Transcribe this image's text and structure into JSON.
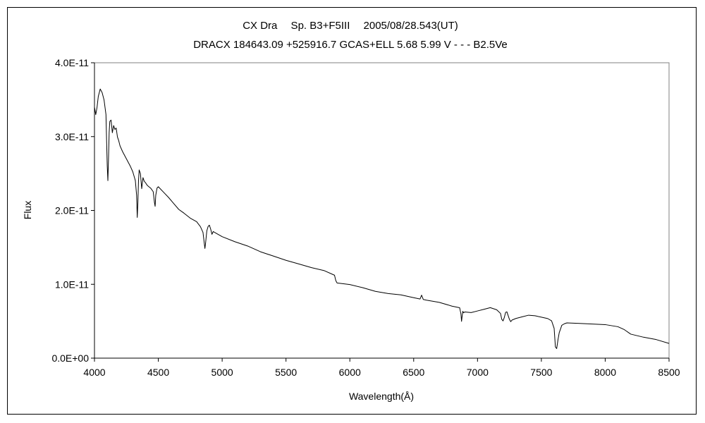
{
  "chart_data": {
    "type": "line",
    "title_line1": "CX Dra　 Sp. B3+F5III　 2005/08/28.543(UT)",
    "title_line2": "DRACX 184643.09 +525916.7 GCAS+ELL 5.68 5.99 V - - - B2.5Ve",
    "xlabel": "Wavelength(Å)",
    "ylabel": "Flux",
    "xlim": [
      4000,
      8500
    ],
    "ylim": [
      0,
      4e-11
    ],
    "x_ticks": [
      4000,
      4500,
      5000,
      5500,
      6000,
      6500,
      7000,
      7500,
      8000,
      8500
    ],
    "x_tick_labels": [
      "4000",
      "4500",
      "5000",
      "5500",
      "6000",
      "6500",
      "7000",
      "7500",
      "8000",
      "8500"
    ],
    "y_ticks": [
      0,
      1e-11,
      2e-11,
      3e-11,
      4e-11
    ],
    "y_tick_labels": [
      "0.0E+00",
      "1.0E-11",
      "2.0E-11",
      "3.0E-11",
      "4.0E-11"
    ],
    "grid": false,
    "legend": "none",
    "series": [
      {
        "x": [
          4000,
          4010,
          4020,
          4030,
          4045,
          4060,
          4075,
          4090,
          4100,
          4105,
          4110,
          4115,
          4120,
          4130,
          4140,
          4150,
          4160,
          4170,
          4180,
          4190,
          4200,
          4220,
          4250,
          4280,
          4300,
          4320,
          4330,
          4335,
          4340,
          4345,
          4350,
          4360,
          4370,
          4380,
          4390,
          4400,
          4410,
          4420,
          4440,
          4460,
          4470,
          4475,
          4480,
          4490,
          4500,
          4540,
          4580,
          4620,
          4660,
          4700,
          4750,
          4800,
          4830,
          4850,
          4860,
          4865,
          4870,
          4880,
          4890,
          4900,
          4910,
          4920,
          4930,
          4950,
          5000,
          5100,
          5200,
          5300,
          5400,
          5500,
          5600,
          5700,
          5800,
          5880,
          5890,
          5900,
          6000,
          6100,
          6200,
          6300,
          6400,
          6500,
          6550,
          6562,
          6575,
          6600,
          6700,
          6800,
          6860,
          6870,
          6875,
          6880,
          6885,
          6890,
          6900,
          6950,
          7000,
          7050,
          7100,
          7150,
          7180,
          7190,
          7200,
          7210,
          7220,
          7230,
          7240,
          7250,
          7260,
          7270,
          7300,
          7350,
          7400,
          7450,
          7500,
          7550,
          7580,
          7600,
          7610,
          7620,
          7630,
          7640,
          7650,
          7660,
          7680,
          7700,
          7800,
          7900,
          8000,
          8100,
          8150,
          8200,
          8300,
          8400,
          8500
        ],
        "y": [
          3.4e-11,
          3.3e-11,
          3.4e-11,
          3.55e-11,
          3.65e-11,
          3.6e-11,
          3.5e-11,
          3.3e-11,
          2.6e-11,
          2.4e-11,
          2.7e-11,
          3.05e-11,
          3.2e-11,
          3.22e-11,
          3.05e-11,
          3.15e-11,
          3.1e-11,
          3.12e-11,
          3e-11,
          2.95e-11,
          2.88e-11,
          2.8e-11,
          2.7e-11,
          2.6e-11,
          2.52e-11,
          2.4e-11,
          2.2e-11,
          1.9e-11,
          2.1e-11,
          2.4e-11,
          2.55e-11,
          2.5e-11,
          2.3e-11,
          2.45e-11,
          2.4e-11,
          2.38e-11,
          2.35e-11,
          2.33e-11,
          2.3e-11,
          2.25e-11,
          2.1e-11,
          2.05e-11,
          2.2e-11,
          2.3e-11,
          2.32e-11,
          2.25e-11,
          2.18e-11,
          2.1e-11,
          2.02e-11,
          1.97e-11,
          1.9e-11,
          1.85e-11,
          1.78e-11,
          1.7e-11,
          1.55e-11,
          1.48e-11,
          1.55e-11,
          1.72e-11,
          1.78e-11,
          1.8e-11,
          1.75e-11,
          1.68e-11,
          1.72e-11,
          1.7e-11,
          1.65e-11,
          1.58e-11,
          1.52e-11,
          1.44e-11,
          1.38e-11,
          1.32e-11,
          1.27e-11,
          1.22e-11,
          1.18e-11,
          1.12e-11,
          1.05e-11,
          1.02e-11,
          1e-11,
          9.6e-12,
          9.1e-12,
          8.8e-12,
          8.6e-12,
          8.2e-12,
          8e-12,
          8.5e-12,
          7.9e-12,
          7.8e-12,
          7.5e-12,
          7e-12,
          6.8e-12,
          6e-12,
          5e-12,
          5.8e-12,
          6.4e-12,
          6.2e-12,
          6.3e-12,
          6.2e-12,
          6.4e-12,
          6.6e-12,
          6.8e-12,
          6.5e-12,
          6e-12,
          5.2e-12,
          5e-12,
          5.5e-12,
          6.2e-12,
          6.3e-12,
          5.8e-12,
          5.3e-12,
          5e-12,
          5.2e-12,
          5.4e-12,
          5.6e-12,
          5.8e-12,
          5.7e-12,
          5.5e-12,
          5.3e-12,
          5e-12,
          4e-12,
          1.5e-12,
          1.3e-12,
          2.5e-12,
          3.5e-12,
          4e-12,
          4.5e-12,
          4.7e-12,
          4.8e-12,
          4.7e-12,
          4.6e-12,
          4.5e-12,
          4.2e-12,
          3.8e-12,
          3.2e-12,
          2.8e-12,
          2.5e-12,
          2e-12
        ]
      }
    ]
  }
}
